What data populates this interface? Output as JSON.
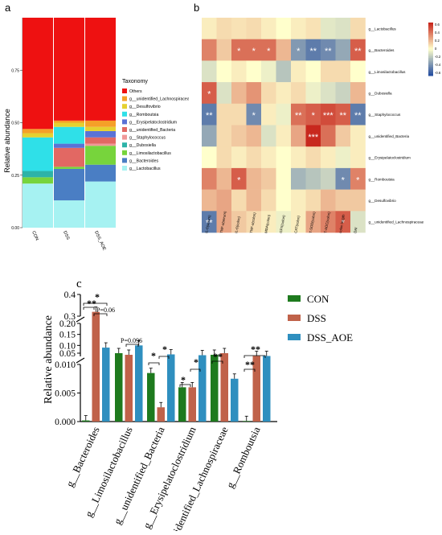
{
  "chart_data": [
    {
      "panel": "a",
      "type": "bar",
      "stacked": true,
      "ylabel": "Relative abundance",
      "ylim": [
        0,
        1
      ],
      "yticks": [
        "0.00",
        "0.25",
        "0.50",
        "0.75"
      ],
      "categories": [
        "CON",
        "DSS",
        "DSS_AOE"
      ],
      "legend_title": "Taxonomy",
      "legend_position": "right",
      "series": [
        {
          "name": "g__Lactobacillus",
          "color": "#a6f2f2",
          "values": [
            0.21,
            0.13,
            0.22
          ]
        },
        {
          "name": "g__Bacteroides",
          "color": "#4a7ec4",
          "values": [
            0.0,
            0.15,
            0.08
          ]
        },
        {
          "name": "g__Limosilactobacillus",
          "color": "#77d43c",
          "values": [
            0.03,
            0.01,
            0.09
          ]
        },
        {
          "name": "g__Dubosiella",
          "color": "#2db3a8",
          "values": [
            0.03,
            0.0,
            0.0
          ]
        },
        {
          "name": "g__Staphylococcus",
          "color": "#f09898",
          "values": [
            0.0,
            0.0,
            0.01
          ]
        },
        {
          "name": "g__unidentified_Bacteria",
          "color": "#e26863",
          "values": [
            0.0,
            0.09,
            0.03
          ]
        },
        {
          "name": "g__Erysipelatoclostridium",
          "color": "#5a72d6",
          "values": [
            0.0,
            0.02,
            0.03
          ]
        },
        {
          "name": "g__Romboutsia",
          "color": "#2fe0e8",
          "values": [
            0.16,
            0.08,
            0.0
          ]
        },
        {
          "name": "g__Desulfovibrio",
          "color": "#e5d12f",
          "values": [
            0.02,
            0.02,
            0.02
          ]
        },
        {
          "name": "g__unidentified_Lachnospiraceae",
          "color": "#f5a028",
          "values": [
            0.02,
            0.01,
            0.03
          ]
        },
        {
          "name": "Others",
          "color": "#ee1111",
          "values": [
            0.53,
            0.49,
            0.49
          ]
        }
      ]
    },
    {
      "panel": "b",
      "type": "heatmap",
      "rows": [
        "g__Lactobacillus",
        "g__Bacteroides",
        "g__Limosilactobacillus",
        "g__Dubosiella",
        "g__Staphylococcus",
        "g__unidentified_Bacteria",
        "g__Erysipelatoclostridium",
        "g__Romboutsia",
        "g__Desulfovibrio",
        "g__unidentified_Lachnospiraceae"
      ],
      "columns": [
        "IL-6(serum)",
        "TNF-a(serum)",
        "IL-6(colon)",
        "TNF-a(colon)",
        "MDA(colon)",
        "GPX(colon)",
        "CAT(colon)",
        "T-SOD(colon)",
        "T-AOC(colon)",
        "colon length",
        "DAI"
      ],
      "colorbar_ticks": [
        "0.6",
        "0.4",
        "0.2",
        "0",
        "-0.2",
        "-0.4",
        "-0.6"
      ],
      "vmin": -0.6,
      "vmax": 0.6,
      "values": [
        [
          0.05,
          0.1,
          0.08,
          0.1,
          0.05,
          0.0,
          0.05,
          0.08,
          -0.08,
          -0.1,
          0.1
        ],
        [
          0.35,
          0.15,
          0.4,
          0.4,
          0.4,
          0.2,
          -0.35,
          -0.45,
          -0.4,
          -0.3,
          0.45
        ],
        [
          -0.1,
          0.0,
          0.05,
          0.0,
          -0.05,
          -0.2,
          0.05,
          0.0,
          0.1,
          0.1,
          0.0
        ],
        [
          0.45,
          -0.1,
          0.2,
          0.3,
          0.1,
          0.05,
          0.1,
          -0.05,
          -0.1,
          -0.15,
          0.2
        ],
        [
          -0.45,
          0.1,
          0.1,
          -0.4,
          0.05,
          -0.05,
          0.4,
          0.45,
          0.5,
          0.45,
          -0.45
        ],
        [
          -0.3,
          0.1,
          0.15,
          0.2,
          -0.1,
          0.05,
          0.25,
          0.75,
          0.4,
          0.15,
          0.05
        ],
        [
          0.0,
          0.1,
          0.05,
          0.1,
          0.05,
          0.0,
          0.05,
          0.1,
          0.05,
          -0.05,
          0.05
        ],
        [
          0.35,
          0.2,
          0.45,
          0.2,
          0.15,
          0.0,
          -0.25,
          -0.2,
          -0.15,
          -0.4,
          0.35
        ],
        [
          0.2,
          0.25,
          0.1,
          0.2,
          0.1,
          0.0,
          0.05,
          0.1,
          0.2,
          0.15,
          0.15
        ],
        [
          -0.45,
          0.25,
          0.15,
          0.1,
          0.05,
          -0.05,
          0.05,
          0.25,
          0.35,
          0.45,
          -0.1
        ]
      ],
      "stars": [
        [
          "",
          "",
          "",
          "",
          "",
          "",
          "",
          "",
          "",
          "",
          ""
        ],
        [
          "",
          "",
          "*",
          "*",
          "*",
          "",
          "*",
          "**",
          "**",
          "",
          "**"
        ],
        [
          "",
          "",
          "",
          "",
          "",
          "",
          "",
          "",
          "",
          "",
          ""
        ],
        [
          "*",
          "",
          "",
          "",
          "",
          "",
          "",
          "",
          "",
          "",
          ""
        ],
        [
          "**",
          "",
          "",
          "*",
          "",
          "",
          "**",
          "*",
          "***",
          "**",
          "**"
        ],
        [
          "",
          "",
          "",
          "",
          "",
          "",
          "",
          "***",
          "",
          "",
          ""
        ],
        [
          "",
          "",
          "",
          "",
          "",
          "",
          "",
          "",
          "",
          "",
          ""
        ],
        [
          "",
          "",
          "*",
          "",
          "",
          "",
          "",
          "",
          "",
          "*",
          "*"
        ],
        [
          "",
          "",
          "",
          "",
          "",
          "",
          "",
          "",
          "",
          "",
          ""
        ],
        [
          "**",
          "",
          "",
          "",
          "",
          "",
          "",
          "",
          "",
          "*",
          ""
        ]
      ]
    },
    {
      "panel": "c",
      "type": "bar",
      "ylabel": "Relative abundance",
      "broken_axis": true,
      "yticks_top": [
        "0.3",
        "0.4"
      ],
      "yticks_mid": [
        "0.05",
        "0.10",
        "0.15",
        "0.20"
      ],
      "yticks_bottom": [
        "0.000",
        "0.005",
        "0.010"
      ],
      "categories": [
        "g__Bacteroides",
        "g__Limosilactobacillus",
        "g__unidentified_Bacteria",
        "g__Erysipelatoclostridium",
        "g__unidentified_Lachnospiraceae",
        "g__Romboutsia"
      ],
      "series": [
        {
          "name": "CON",
          "color": "#1e7a1e",
          "values": [
            0.0002,
            0.05,
            0.0085,
            0.006,
            0.03,
            0.0001
          ]
        },
        {
          "name": "DSS",
          "color": "#c0624a",
          "values": [
            0.32,
            0.03,
            0.0025,
            0.006,
            0.05,
            0.015
          ]
        },
        {
          "name": "DSS_AOE",
          "color": "#2f8fbf",
          "values": [
            0.09,
            0.1,
            0.035,
            0.025,
            0.0075,
            0.015
          ]
        }
      ],
      "annotations": [
        "**",
        "*",
        "P=0.06",
        "P=0.096",
        "*",
        "*",
        "*",
        "*",
        "*",
        "**",
        "**",
        "**"
      ],
      "legend_position": "top-right"
    }
  ],
  "panel_labels": {
    "a": "a",
    "b": "b",
    "c": "c"
  }
}
